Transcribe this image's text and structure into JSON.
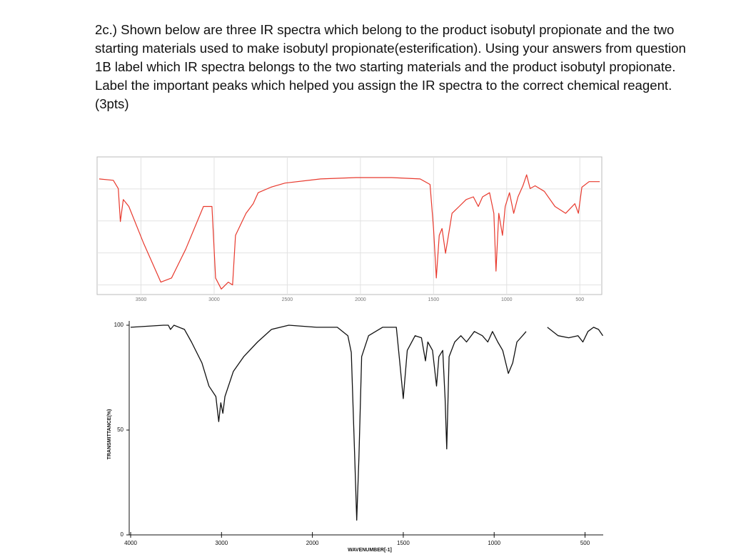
{
  "question": {
    "paragraphs": [
      "2c.) Shown below are three IR spectra which belong to the product isobutyl propionate and the two starting materials used to make isobutyl propionate(esterification). Using your answers from question 1B label which IR spectra belongs to the two starting materials and the product isobutyl propionate.",
      "Label the important peaks which helped you assign the IR spectra to the correct chemical reagent.",
      "(3pts)"
    ]
  },
  "chart_data": [
    {
      "type": "line",
      "xlim": [
        3800,
        350
      ],
      "xticks": [
        3500,
        3000,
        2500,
        2000,
        1500,
        1000,
        500
      ],
      "ylim": [
        0,
        100
      ],
      "grid": true,
      "x": [
        3786,
        3689,
        3655,
        3641,
        3621,
        3583,
        3485,
        3364,
        3291,
        3194,
        3073,
        3015,
        2990,
        2951,
        2903,
        2874,
        2854,
        2782,
        2733,
        2699,
        2612,
        2515,
        2272,
        2029,
        1787,
        1592,
        1524,
        1500,
        1481,
        1461,
        1442,
        1418,
        1398,
        1374,
        1325,
        1277,
        1228,
        1194,
        1165,
        1117,
        1088,
        1073,
        1054,
        1029,
        1010,
        981,
        952,
        923,
        889,
        864,
        840,
        806,
        743,
        670,
        597,
        534,
        510,
        486,
        437,
        364
      ],
      "series": [
        {
          "color": "#e8392d",
          "values": [
            84,
            83,
            77,
            53,
            69,
            64,
            38,
            9,
            12,
            33,
            64,
            64,
            12,
            4,
            9,
            7,
            43,
            59,
            66,
            74,
            78,
            81,
            84,
            85,
            85,
            84,
            80,
            48,
            12,
            43,
            48,
            30,
            43,
            59,
            64,
            69,
            71,
            64,
            71,
            74,
            59,
            17,
            59,
            43,
            64,
            74,
            59,
            71,
            79,
            87,
            77,
            79,
            75,
            64,
            59,
            66,
            59,
            78,
            82,
            82
          ]
        }
      ]
    },
    {
      "type": "line",
      "xlim": [
        4000,
        400
      ],
      "xticks": [
        4000,
        3000,
        2000,
        1500,
        1000,
        500
      ],
      "ylim": [
        0,
        100
      ],
      "yticks": [
        0,
        50,
        100
      ],
      "xlabel": "WAVENUMBER[-1]",
      "ylabel": "TRANSMITTANCE(%)",
      "x": [
        4000,
        3638,
        3585,
        3562,
        3523,
        3408,
        3331,
        3215,
        3138,
        3062,
        3031,
        3008,
        2985,
        2962,
        2870,
        2756,
        2603,
        2450,
        2260,
        1977,
        1863,
        1805,
        1786,
        1767,
        1756,
        1744,
        1729,
        1691,
        1614,
        1538,
        1519,
        1500,
        1478,
        1435,
        1400,
        1378,
        1365,
        1339,
        1317,
        1304,
        1283,
        1270,
        1261,
        1248,
        1217,
        1183,
        1152,
        1109,
        1065,
        1035,
        1009,
        980,
        953,
        922,
        898,
        875,
        844,
        824,
        780,
        707,
        648,
        590,
        539,
        512,
        484,
        453,
        426,
        402
      ],
      "series": [
        {
          "color": "#111111",
          "values": [
            99,
            100,
            100,
            98,
            100,
            98,
            92,
            82,
            71,
            66,
            54,
            63,
            58,
            66,
            78,
            85,
            92,
            98,
            100,
            99,
            99,
            95,
            87,
            37,
            7,
            37,
            85,
            95,
            99,
            99,
            82,
            65,
            88,
            95,
            94,
            83,
            92,
            88,
            71,
            85,
            88,
            65,
            41,
            85,
            92,
            95,
            92,
            97,
            95,
            92,
            97,
            92,
            88,
            77,
            82,
            92,
            95,
            97,
            null,
            99,
            95,
            94,
            95,
            92,
            97,
            99,
            98,
            95
          ]
        }
      ]
    }
  ]
}
